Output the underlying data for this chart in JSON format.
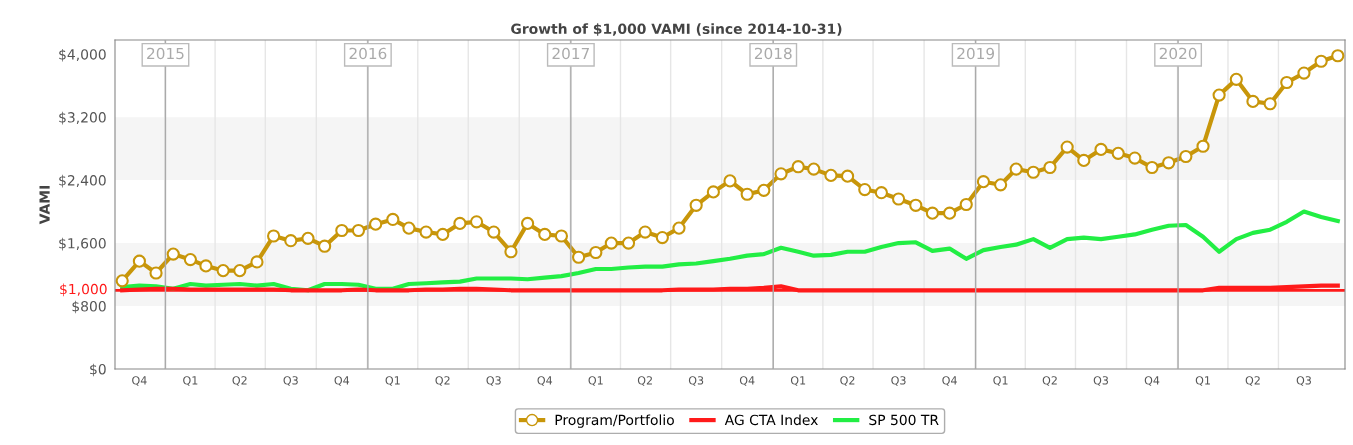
{
  "chart_data": {
    "type": "line",
    "title": "Growth of $1,000 VAMI (since 2014-10-31)",
    "ylabel": "VAMI",
    "x": [
      "2014-10-15",
      "2014-11-15",
      "2014-12-15",
      "2015-01-15",
      "2015-02-15",
      "2015-03-15",
      "2015-04-15",
      "2015-05-15",
      "2015-06-15",
      "2015-07-15",
      "2015-08-15",
      "2015-09-15",
      "2015-10-15",
      "2015-11-15",
      "2015-12-15",
      "2016-01-15",
      "2016-02-15",
      "2016-03-15",
      "2016-04-15",
      "2016-05-15",
      "2016-06-15",
      "2016-07-15",
      "2016-08-15",
      "2016-09-15",
      "2016-10-15",
      "2016-11-15",
      "2016-12-15",
      "2017-01-15",
      "2017-02-15",
      "2017-03-15",
      "2017-04-15",
      "2017-05-15",
      "2017-06-15",
      "2017-07-15",
      "2017-08-15",
      "2017-09-15",
      "2017-10-15",
      "2017-11-15",
      "2017-12-15",
      "2018-01-15",
      "2018-02-15",
      "2018-03-15",
      "2018-04-15",
      "2018-05-15",
      "2018-06-15",
      "2018-07-15",
      "2018-08-15",
      "2018-09-15",
      "2018-10-15",
      "2018-11-15",
      "2018-12-15",
      "2019-01-15",
      "2019-02-15",
      "2019-03-15",
      "2019-04-15",
      "2019-05-15",
      "2019-06-15",
      "2019-07-15",
      "2019-08-15",
      "2019-09-15",
      "2019-10-15",
      "2019-11-15",
      "2019-12-15",
      "2020-01-15",
      "2020-02-15",
      "2020-03-15",
      "2020-04-15",
      "2020-05-15",
      "2020-06-15",
      "2020-07-15",
      "2020-08-15",
      "2020-09-15",
      "2020-10-15"
    ],
    "series": [
      {
        "name": "Program/Portfolio",
        "color": "#c8960a",
        "marker": "circle",
        "values": [
          1120,
          1370,
          1220,
          1460,
          1390,
          1310,
          1250,
          1250,
          1360,
          1690,
          1630,
          1660,
          1560,
          1760,
          1760,
          1840,
          1900,
          1790,
          1740,
          1710,
          1850,
          1870,
          1740,
          1490,
          1850,
          1710,
          1690,
          1420,
          1480,
          1600,
          1600,
          1740,
          1670,
          1790,
          2080,
          2250,
          2390,
          2220,
          2270,
          2480,
          2570,
          2540,
          2460,
          2450,
          2280,
          2240,
          2160,
          2080,
          1980,
          1980,
          2090,
          2380,
          2340,
          2540,
          2500,
          2560,
          2820,
          2650,
          2790,
          2740,
          2680,
          2560,
          2620,
          2700,
          2830,
          3480,
          3680,
          3400,
          3370,
          3640,
          3760,
          3910,
          3980
        ]
      },
      {
        "name": "AG CTA Index",
        "color": "#ff1a1a",
        "marker": "none",
        "values": [
          1000,
          1010,
          1020,
          1020,
          1010,
          1010,
          1010,
          1010,
          1010,
          1010,
          1000,
          1000,
          1000,
          1000,
          1010,
          1000,
          1000,
          1000,
          1010,
          1010,
          1020,
          1020,
          1010,
          1000,
          1000,
          1000,
          1000,
          1000,
          1000,
          1000,
          1000,
          1000,
          1000,
          1010,
          1010,
          1010,
          1020,
          1020,
          1030,
          1050,
          1000,
          1000,
          1000,
          1000,
          1000,
          1000,
          1000,
          1000,
          1000,
          1000,
          1000,
          1000,
          1000,
          1000,
          1000,
          1000,
          1000,
          1000,
          1000,
          1000,
          1000,
          1000,
          1000,
          1000,
          1000,
          1030,
          1030,
          1030,
          1030,
          1040,
          1050,
          1060,
          1060
        ]
      },
      {
        "name": "SP 500 TR",
        "color": "#22ee44",
        "marker": "none",
        "values": [
          1040,
          1060,
          1050,
          1020,
          1080,
          1060,
          1070,
          1080,
          1060,
          1080,
          1020,
          1000,
          1080,
          1080,
          1070,
          1020,
          1020,
          1080,
          1090,
          1100,
          1110,
          1150,
          1150,
          1150,
          1140,
          1160,
          1180,
          1220,
          1270,
          1270,
          1290,
          1300,
          1300,
          1330,
          1340,
          1370,
          1400,
          1440,
          1460,
          1540,
          1490,
          1440,
          1450,
          1490,
          1490,
          1550,
          1600,
          1610,
          1500,
          1530,
          1400,
          1510,
          1550,
          1580,
          1650,
          1540,
          1650,
          1670,
          1650,
          1680,
          1710,
          1770,
          1820,
          1830,
          1680,
          1490,
          1650,
          1730,
          1770,
          1870,
          2000,
          1930,
          1880
        ]
      }
    ],
    "xlim": [
      "2014-10-02",
      "2020-10-28"
    ],
    "xticks": [
      {
        "value": "2014-11-15",
        "label": "Q4"
      },
      {
        "value": "2015-02-15",
        "label": "Q1"
      },
      {
        "value": "2015-05-15",
        "label": "Q2"
      },
      {
        "value": "2015-08-15",
        "label": "Q3"
      },
      {
        "value": "2015-11-15",
        "label": "Q4"
      },
      {
        "value": "2016-02-15",
        "label": "Q1"
      },
      {
        "value": "2016-05-15",
        "label": "Q2"
      },
      {
        "value": "2016-08-15",
        "label": "Q3"
      },
      {
        "value": "2016-11-15",
        "label": "Q4"
      },
      {
        "value": "2017-02-15",
        "label": "Q1"
      },
      {
        "value": "2017-05-15",
        "label": "Q2"
      },
      {
        "value": "2017-08-15",
        "label": "Q3"
      },
      {
        "value": "2017-11-15",
        "label": "Q4"
      },
      {
        "value": "2018-02-15",
        "label": "Q1"
      },
      {
        "value": "2018-05-15",
        "label": "Q2"
      },
      {
        "value": "2018-08-15",
        "label": "Q3"
      },
      {
        "value": "2018-11-15",
        "label": "Q4"
      },
      {
        "value": "2019-02-15",
        "label": "Q1"
      },
      {
        "value": "2019-05-15",
        "label": "Q2"
      },
      {
        "value": "2019-08-15",
        "label": "Q3"
      },
      {
        "value": "2019-11-15",
        "label": "Q4"
      },
      {
        "value": "2020-02-15",
        "label": "Q1"
      },
      {
        "value": "2020-05-15",
        "label": "Q2"
      },
      {
        "value": "2020-08-15",
        "label": "Q3"
      }
    ],
    "x2lim": [
      "2014-10-02",
      "2020-10-28"
    ],
    "x2ticks": [
      {
        "value": "2015-01-01",
        "label": "2015"
      },
      {
        "value": "2016-01-01",
        "label": "2016"
      },
      {
        "value": "2017-01-01",
        "label": "2017"
      },
      {
        "value": "2018-01-01",
        "label": "2018"
      },
      {
        "value": "2019-01-01",
        "label": "2019"
      },
      {
        "value": "2020-01-01",
        "label": "2020"
      }
    ],
    "ylim": [
      0,
      4180
    ],
    "yticks": [
      {
        "value": 0,
        "label": "$0"
      },
      {
        "value": 800,
        "label": "$800"
      },
      {
        "value": 1600,
        "label": "$1,600"
      },
      {
        "value": 2400,
        "label": "$2,400"
      },
      {
        "value": 3200,
        "label": "$3,200"
      },
      {
        "value": 4000,
        "label": "$4,000"
      }
    ],
    "ref_lines": [
      {
        "axis": "y",
        "value": 1000,
        "label": "$1,000",
        "color": "#ff1a1a"
      }
    ],
    "bands": [
      {
        "axis": "y",
        "from": 800,
        "to": 1600,
        "color": "#f5f5f5"
      },
      {
        "axis": "y",
        "from": 2400,
        "to": 3200,
        "color": "#f5f5f5"
      }
    ],
    "grid": "x",
    "legend": "bottom",
    "line_style": "solid"
  }
}
